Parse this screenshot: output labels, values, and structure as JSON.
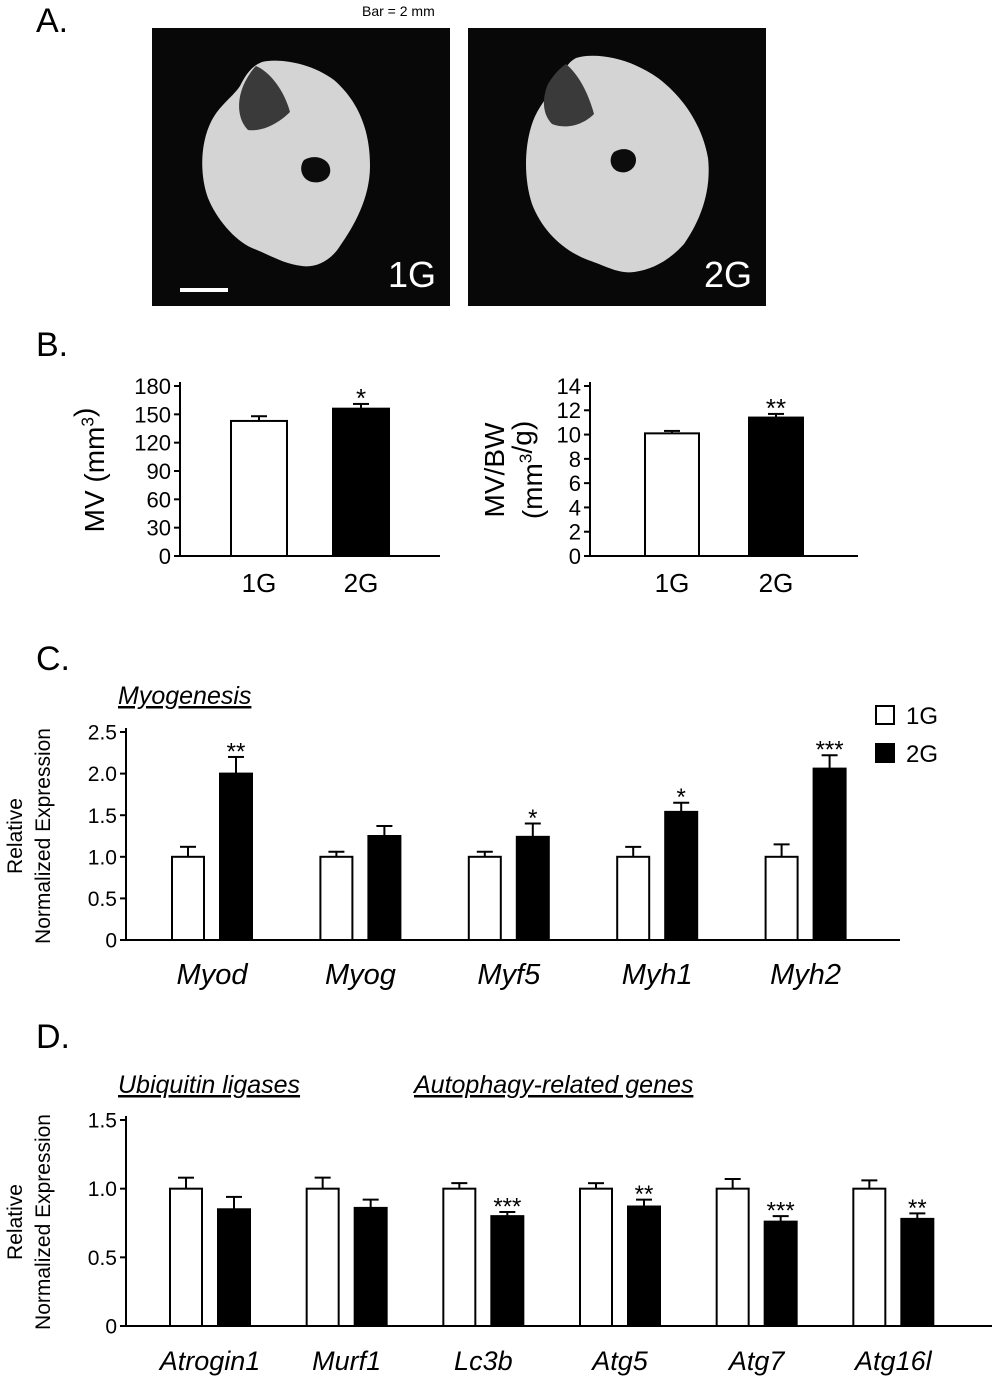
{
  "panel_a": {
    "letter": "A.",
    "bar_note": "Bar = 2 mm",
    "images": [
      {
        "group": "1G"
      },
      {
        "group": "2G"
      }
    ]
  },
  "panel_b": {
    "letter": "B."
  },
  "panel_c": {
    "letter": "C."
  },
  "panel_d": {
    "letter": "D."
  },
  "chart_data": [
    {
      "id": "b1",
      "type": "bar",
      "categories": [
        "1G",
        "2G"
      ],
      "values": [
        143,
        156
      ],
      "errors": [
        5,
        5
      ],
      "significance": [
        "",
        "*"
      ],
      "ylabel": "MV (mm³)",
      "ylim": [
        0,
        180
      ],
      "yticks": [
        "0",
        "30",
        "60",
        "90",
        "120",
        "150",
        "180"
      ],
      "colors": [
        "#ffffff",
        "#000000"
      ]
    },
    {
      "id": "b2",
      "type": "bar",
      "categories": [
        "1G",
        "2G"
      ],
      "values": [
        10.1,
        11.4
      ],
      "errors": [
        0.2,
        0.3
      ],
      "significance": [
        "",
        "**"
      ],
      "ylabel_line1": "MV/BW",
      "ylabel_line2": "(mm³/g)",
      "ylim": [
        0,
        14
      ],
      "yticks": [
        "0",
        "2",
        "4",
        "6",
        "8",
        "10",
        "12",
        "14"
      ],
      "colors": [
        "#ffffff",
        "#000000"
      ]
    },
    {
      "id": "c",
      "type": "bar",
      "group_title": "Myogenesis",
      "categories": [
        "Myod",
        "Myog",
        "Myf5",
        "Myh1",
        "Myh2"
      ],
      "series": [
        {
          "name": "1G",
          "color": "#ffffff",
          "values": [
            1.0,
            1.0,
            1.0,
            1.0,
            1.0
          ],
          "errors": [
            0.12,
            0.06,
            0.06,
            0.12,
            0.15
          ]
        },
        {
          "name": "2G",
          "color": "#000000",
          "values": [
            2.0,
            1.25,
            1.24,
            1.54,
            2.06
          ],
          "errors": [
            0.2,
            0.12,
            0.16,
            0.11,
            0.16
          ]
        }
      ],
      "significance": [
        "**",
        "",
        "*",
        "*",
        "***"
      ],
      "ylabel_line1": "Relative",
      "ylabel_line2": "Normalized Expression",
      "ylim": [
        0,
        2.5
      ],
      "yticks": [
        "0",
        "0.5",
        "1.0",
        "1.5",
        "2.0",
        "2.5"
      ],
      "legend": {
        "placement": "top-right",
        "entries": [
          "1G",
          "2G"
        ]
      }
    },
    {
      "id": "d",
      "type": "bar",
      "group_titles": [
        "Ubiquitin ligases",
        "Autophagy-related genes"
      ],
      "categories": [
        "Atrogin1",
        "Murf1",
        "Lc3b",
        "Atg5",
        "Atg7",
        "Atg16l"
      ],
      "series": [
        {
          "name": "1G",
          "color": "#ffffff",
          "values": [
            1.0,
            1.0,
            1.0,
            1.0,
            1.0,
            1.0
          ],
          "errors": [
            0.08,
            0.08,
            0.04,
            0.04,
            0.07,
            0.06
          ]
        },
        {
          "name": "2G",
          "color": "#000000",
          "values": [
            0.85,
            0.86,
            0.8,
            0.87,
            0.76,
            0.78
          ],
          "errors": [
            0.09,
            0.06,
            0.03,
            0.05,
            0.04,
            0.04
          ]
        }
      ],
      "significance": [
        "",
        "",
        "***",
        "**",
        "***",
        "**"
      ],
      "ylabel_line1": "Relative",
      "ylabel_line2": "Normalized Expression",
      "ylim": [
        0,
        1.5
      ],
      "yticks": [
        "0",
        "0.5",
        "1.0",
        "1.5"
      ]
    }
  ]
}
